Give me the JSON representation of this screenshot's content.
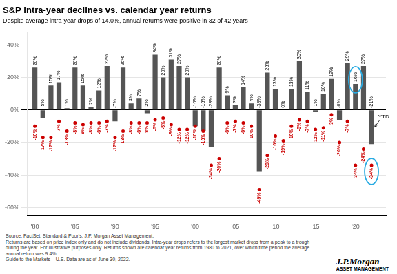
{
  "chart_data": {
    "type": "bar",
    "title": "S&P intra-year declines vs. calendar year returns",
    "subtitle": "Despite average intra-year drops of 14.0%, annual returns were positive in 32 of 42 years",
    "x": [
      1980,
      1981,
      1982,
      1983,
      1984,
      1985,
      1986,
      1987,
      1988,
      1989,
      1990,
      1991,
      1992,
      1993,
      1994,
      1995,
      1996,
      1997,
      1998,
      1999,
      2000,
      2001,
      2002,
      2003,
      2004,
      2005,
      2006,
      2007,
      2008,
      2009,
      2010,
      2011,
      2012,
      2013,
      2014,
      2015,
      2016,
      2017,
      2018,
      2019,
      2020,
      2021,
      2022
    ],
    "series": [
      {
        "type": "bar",
        "color": "#555555",
        "values": [
          26,
          -5,
          15,
          17,
          1,
          26,
          15,
          2,
          12,
          27,
          -7,
          26,
          4,
          7,
          -2,
          34,
          20,
          31,
          27,
          20,
          -10,
          -13,
          -23,
          26,
          9,
          3,
          14,
          4,
          -38,
          23,
          13,
          0,
          13,
          30,
          11,
          -1,
          10,
          19,
          -6,
          29,
          16,
          27,
          -21
        ],
        "value_labels": [
          "26%",
          "-5%",
          "15%",
          "17%",
          "1%",
          "26%",
          "15%",
          "2%",
          "12%",
          "27%",
          "-7%",
          "26%",
          "4%",
          "7%",
          "-2%",
          "34%",
          "20%",
          "31%",
          "27%",
          "20%",
          "-10%",
          "-13%",
          "-23%",
          "26%",
          "9%",
          "3%",
          "14%",
          "4%",
          "-38%",
          "23%",
          "13%",
          "0%",
          "13%",
          "30%",
          "11%",
          "-1%",
          "10%",
          "19%",
          "-6%",
          "29%",
          "16%",
          "27%",
          "-21%"
        ]
      },
      {
        "type": "scatter",
        "color": "#cc0000",
        "values": [
          -10,
          -17,
          -17,
          -7,
          -13,
          -8,
          -9,
          -8,
          -8,
          -7,
          -17,
          -13,
          -8,
          -8,
          -8,
          -6,
          -5,
          -9,
          -12,
          -12,
          -10,
          -13,
          -34,
          -30,
          -8,
          -7,
          -8,
          -10,
          -49,
          -28,
          -16,
          -19,
          -10,
          -6,
          -7,
          -12,
          -11,
          -3,
          -20,
          -7,
          -34,
          -24,
          -34
        ],
        "value_labels": [
          "-10%",
          "-17%",
          "-17%",
          "-7%",
          "-13%",
          "-8%",
          "-9%",
          "-8%",
          "-8%",
          "-7%",
          "-17%",
          "-13%",
          "-8%",
          "-8%",
          "-8%",
          "-6%",
          "-5%",
          "-9%",
          "-12%",
          "-12%",
          "-10%",
          "-13%",
          "-34%",
          "-30%",
          "-8%",
          "-7%",
          "-8%",
          "-10%",
          "-49%",
          "-28%",
          "-16%",
          "-19%",
          "-10%",
          "-6%",
          "-7%",
          "-12%",
          "-11%",
          "-3%",
          "-20%",
          "-7%",
          "-34%",
          "-24%",
          "-34%"
        ]
      }
    ],
    "xlim": [
      1979.0,
      2023.8
    ],
    "xticks": [
      {
        "value": 1980,
        "label": "'80"
      },
      {
        "value": 1985,
        "label": "'85"
      },
      {
        "value": 1990,
        "label": "'90"
      },
      {
        "value": 1995,
        "label": "'95"
      },
      {
        "value": 2000,
        "label": "'00"
      },
      {
        "value": 2005,
        "label": "'05"
      },
      {
        "value": 2010,
        "label": "'10"
      },
      {
        "value": 2015,
        "label": "'15"
      },
      {
        "value": 2020,
        "label": "'20"
      }
    ],
    "ylim": [
      -65,
      48
    ],
    "yticks": [
      {
        "value": -60,
        "label": "-60%"
      },
      {
        "value": -40,
        "label": "-40%"
      },
      {
        "value": -20,
        "label": "-20%"
      },
      {
        "value": 0,
        "label": "0%"
      },
      {
        "value": 20,
        "label": "20%"
      },
      {
        "value": 40,
        "label": "40%"
      }
    ],
    "grid": true,
    "data_labels": true,
    "annotations": [
      {
        "text": "YTD",
        "x": 2022
      },
      {
        "shape": "ellipse",
        "x": 2020,
        "series": 0,
        "color": "#29abe2"
      },
      {
        "shape": "ellipse",
        "x": 2022,
        "series": 1,
        "color": "#29abe2"
      }
    ],
    "source": "Source: FactSet, Standard & Poor's, J.P. Morgan Asset Management.\nReturns are based on price index only and do not include dividends. Intra-year drops refers to the largest market drops from a peak to a trough\nduring the year. For illustrative purposes only. Returns shown are calendar year returns from 1980 to 2021, over which time period the average\nannual return was 9.4%.\nGuide to the Markets – U.S. Data are as of June 30, 2022.",
    "logo": [
      "J.P.Morgan",
      "ASSET MANAGEMENT"
    ]
  }
}
